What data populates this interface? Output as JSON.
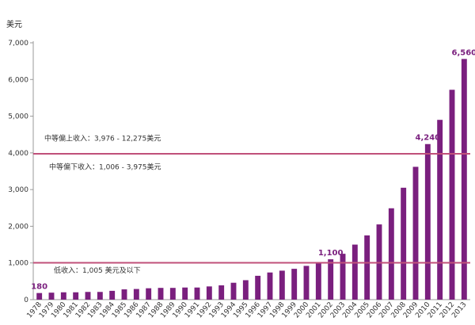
{
  "chart_data": {
    "type": "bar",
    "ylabel": "美元",
    "ylim": [
      0,
      7000
    ],
    "yticks": [
      "0",
      "1,000",
      "2,000",
      "3,000",
      "4,000",
      "5,000",
      "6,000",
      "7,000"
    ],
    "ytick_values": [
      0,
      1000,
      2000,
      3000,
      4000,
      5000,
      6000,
      7000
    ],
    "categories": [
      "1978",
      "1979",
      "1980",
      "1981",
      "1982",
      "1983",
      "1984",
      "1985",
      "1986",
      "1987",
      "1988",
      "1989",
      "1990",
      "1991",
      "1992",
      "1993",
      "1994",
      "1995",
      "1996",
      "1997",
      "1998",
      "1999",
      "2000",
      "2001",
      "2002",
      "2003",
      "2004",
      "2005",
      "2006",
      "2007",
      "2008",
      "2009",
      "2010",
      "2011",
      "2012",
      "2013"
    ],
    "values": [
      180,
      190,
      200,
      200,
      210,
      210,
      240,
      280,
      290,
      310,
      320,
      320,
      330,
      330,
      360,
      390,
      460,
      530,
      650,
      740,
      790,
      840,
      920,
      1000,
      1100,
      1250,
      1500,
      1750,
      2050,
      2490,
      3050,
      3620,
      4240,
      4900,
      5720,
      6560
    ],
    "bar_color": "#7a1f7e",
    "data_labels": [
      {
        "category": "1978",
        "text": "180"
      },
      {
        "category": "2002",
        "text": "1,100"
      },
      {
        "category": "2010",
        "text": "4,240"
      },
      {
        "category": "2013",
        "text": "6,560"
      }
    ],
    "reference_lines": [
      {
        "value": 3975,
        "color": "#c0507a"
      },
      {
        "value": 1005,
        "color": "#c0507a"
      }
    ],
    "annotations": [
      {
        "text": "中等偏上收入：3,976 - 12,275美元",
        "near_value": 4400
      },
      {
        "text": "中等偏下收入：1,006 - 3,975美元",
        "near_value": 3620
      },
      {
        "text": "低收入：1,005 美元及以下",
        "near_value": 800
      }
    ],
    "grid": false
  }
}
